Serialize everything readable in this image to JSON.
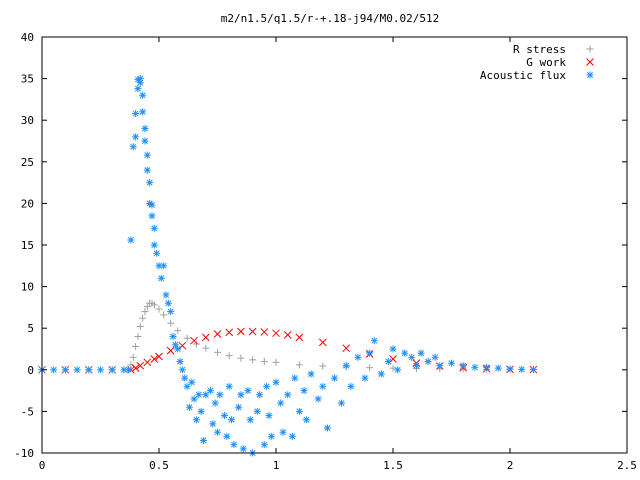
{
  "chart_data": {
    "type": "scatter",
    "title": "m2/n1.5/q1.5/r-+.18-j94/M0.02/512",
    "xlabel": "",
    "ylabel": "",
    "xlim": [
      0,
      2.5
    ],
    "ylim": [
      -10,
      40
    ],
    "x_ticks": [
      "0",
      "0.5",
      "1",
      "1.5",
      "2",
      "2.5"
    ],
    "y_ticks": [
      "-10",
      "-5",
      "0",
      "5",
      "10",
      "15",
      "20",
      "25",
      "30",
      "35",
      "40"
    ],
    "grid": false,
    "legend_position": "top-right",
    "series": [
      {
        "name": "R stress",
        "marker": "plus",
        "color": "#a0a0a0",
        "x": [
          0,
          0.1,
          0.2,
          0.3,
          0.37,
          0.38,
          0.39,
          0.4,
          0.41,
          0.42,
          0.43,
          0.44,
          0.45,
          0.46,
          0.47,
          0.48,
          0.5,
          0.52,
          0.55,
          0.58,
          0.62,
          0.66,
          0.7,
          0.75,
          0.8,
          0.85,
          0.9,
          0.95,
          1.0,
          1.1,
          1.2,
          1.3,
          1.4,
          1.5,
          1.6,
          1.7,
          1.8,
          1.9,
          2.0,
          2.1
        ],
        "y": [
          0,
          0,
          0,
          0,
          0,
          0.6,
          1.5,
          2.8,
          4.0,
          5.2,
          6.2,
          7.0,
          7.6,
          8.0,
          8.0,
          7.8,
          7.3,
          6.6,
          5.6,
          4.7,
          3.8,
          3.1,
          2.6,
          2.1,
          1.7,
          1.4,
          1.2,
          1.0,
          0.9,
          0.6,
          0.45,
          0.35,
          0.25,
          0.2,
          0.15,
          0.12,
          0.1,
          0.08,
          0.06,
          0.05
        ]
      },
      {
        "name": "G work",
        "marker": "cross",
        "color": "#ff0000",
        "x": [
          0,
          0.1,
          0.2,
          0.3,
          0.38,
          0.4,
          0.42,
          0.45,
          0.48,
          0.5,
          0.55,
          0.6,
          0.65,
          0.7,
          0.75,
          0.8,
          0.85,
          0.9,
          0.95,
          1.0,
          1.05,
          1.1,
          1.2,
          1.3,
          1.4,
          1.5,
          1.6,
          1.7,
          1.8,
          1.9,
          2.0,
          2.1
        ],
        "y": [
          0,
          0,
          0,
          0,
          0,
          0.2,
          0.5,
          0.9,
          1.3,
          1.6,
          2.3,
          2.9,
          3.5,
          3.9,
          4.3,
          4.5,
          4.6,
          4.6,
          4.55,
          4.4,
          4.2,
          3.9,
          3.3,
          2.6,
          1.9,
          1.3,
          0.8,
          0.45,
          0.25,
          0.12,
          0.05,
          0.02
        ]
      },
      {
        "name": "Acoustic flux",
        "marker": "star",
        "color": "#1e90ff",
        "x": [
          0,
          0.05,
          0.1,
          0.15,
          0.2,
          0.25,
          0.3,
          0.35,
          0.37,
          0.38,
          0.39,
          0.4,
          0.4,
          0.41,
          0.41,
          0.42,
          0.42,
          0.43,
          0.43,
          0.44,
          0.44,
          0.45,
          0.45,
          0.46,
          0.46,
          0.47,
          0.47,
          0.48,
          0.48,
          0.49,
          0.5,
          0.51,
          0.52,
          0.53,
          0.54,
          0.55,
          0.56,
          0.57,
          0.58,
          0.59,
          0.6,
          0.61,
          0.62,
          0.63,
          0.64,
          0.65,
          0.66,
          0.67,
          0.68,
          0.69,
          0.7,
          0.72,
          0.73,
          0.74,
          0.75,
          0.76,
          0.78,
          0.79,
          0.8,
          0.81,
          0.82,
          0.84,
          0.85,
          0.86,
          0.88,
          0.89,
          0.9,
          0.92,
          0.93,
          0.95,
          0.96,
          0.97,
          0.98,
          1.0,
          1.02,
          1.03,
          1.05,
          1.07,
          1.08,
          1.1,
          1.12,
          1.13,
          1.15,
          1.18,
          1.2,
          1.22,
          1.25,
          1.28,
          1.3,
          1.32,
          1.35,
          1.38,
          1.4,
          1.42,
          1.45,
          1.48,
          1.5,
          1.52,
          1.55,
          1.58,
          1.6,
          1.62,
          1.65,
          1.68,
          1.7,
          1.75,
          1.8,
          1.85,
          1.9,
          1.95,
          2.0,
          2.05,
          2.1
        ],
        "y": [
          0,
          0,
          0,
          0,
          0,
          0,
          0,
          0,
          0,
          15.6,
          26.8,
          30.8,
          28.0,
          33.8,
          34.9,
          34.5,
          35.0,
          33.0,
          31.0,
          29.0,
          27.5,
          25.8,
          24.0,
          22.5,
          20.0,
          19.8,
          18.5,
          17.0,
          15.0,
          14.0,
          12.5,
          11.0,
          12.5,
          9.0,
          8.0,
          7.0,
          4.0,
          3.0,
          2.5,
          1.0,
          0.0,
          -1.0,
          -2.0,
          -4.5,
          -1.5,
          -3.5,
          -6.0,
          -3.0,
          -5.0,
          -8.5,
          -3.0,
          -2.5,
          -6.5,
          -4.0,
          -7.5,
          -3.0,
          -5.5,
          -8.0,
          -2.0,
          -6.0,
          -9.0,
          -4.5,
          -3.0,
          -9.5,
          -2.5,
          -6.0,
          -10.0,
          -5.0,
          -3.0,
          -9.0,
          -2.0,
          -5.5,
          -8.0,
          -1.5,
          -4.0,
          -7.5,
          -3.0,
          -8.0,
          -1.0,
          -5.0,
          -2.5,
          -6.0,
          -0.5,
          -3.5,
          -2.0,
          -7.0,
          -1.0,
          -4.0,
          0.5,
          -2.0,
          1.5,
          -1.0,
          2.0,
          3.5,
          -0.5,
          1.0,
          2.5,
          0.0,
          2.0,
          1.5,
          0.5,
          2.0,
          1.0,
          1.5,
          0.5,
          0.8,
          0.5,
          0.3,
          0.3,
          0.2,
          0.1,
          0.05,
          0.02
        ]
      }
    ]
  }
}
